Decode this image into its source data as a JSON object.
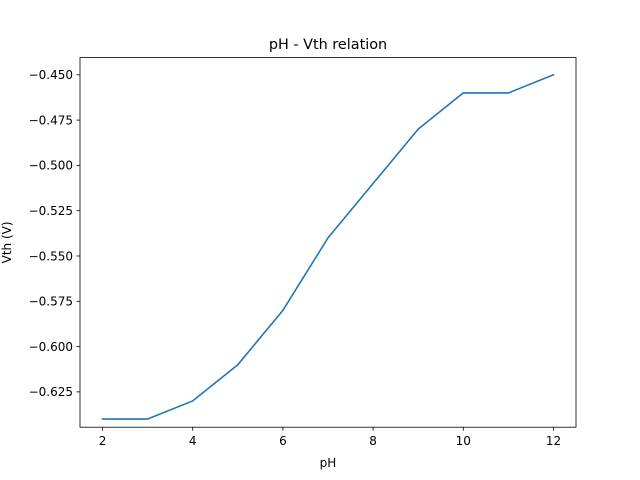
{
  "chart_data": {
    "type": "line",
    "title": "pH - Vth relation",
    "xlabel": "pH",
    "ylabel": "Vth (V)",
    "xlim": [
      1.5,
      12.5
    ],
    "ylim": [
      -0.6445,
      -0.4405
    ],
    "xticks": [
      2,
      4,
      6,
      8,
      10,
      12
    ],
    "xtick_labels": [
      "2",
      "4",
      "6",
      "8",
      "10",
      "12"
    ],
    "yticks": [
      -0.625,
      -0.6,
      -0.575,
      -0.55,
      -0.525,
      -0.5,
      -0.475,
      -0.45
    ],
    "ytick_labels": [
      "−0.625",
      "−0.600",
      "−0.575",
      "−0.550",
      "−0.525",
      "−0.500",
      "−0.475",
      "−0.450"
    ],
    "grid": false,
    "series": [
      {
        "color": "#1f77b4",
        "x": [
          2,
          3,
          4,
          5,
          6,
          7,
          8,
          9,
          10,
          11,
          12
        ],
        "y": [
          -0.64,
          -0.64,
          -0.63,
          -0.61,
          -0.58,
          -0.54,
          -0.51,
          -0.48,
          -0.46,
          -0.46,
          -0.45
        ]
      }
    ]
  }
}
